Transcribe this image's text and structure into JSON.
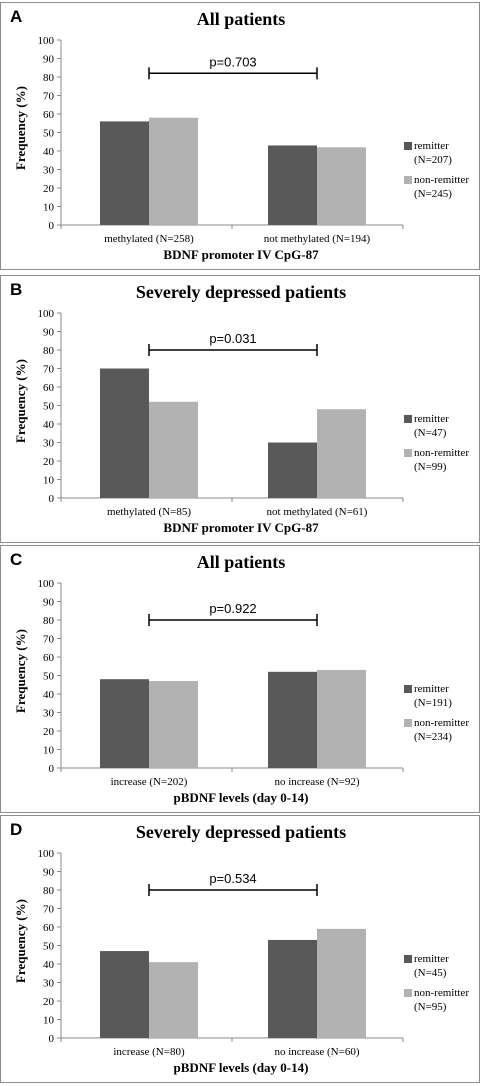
{
  "colors": {
    "remitter": "#595959",
    "non_remitter": "#b2b2b2",
    "axis": "#8a8a8a"
  },
  "chart_data": [
    {
      "type": "bar",
      "panel": "A",
      "title": "All patients",
      "xlabel": "BDNF promoter IV CpG-87",
      "ylabel": "Frequency (%)",
      "ylim": [
        0,
        100
      ],
      "yticks": [
        "0",
        "10",
        "20",
        "30",
        "40",
        "50",
        "60",
        "70",
        "80",
        "90",
        "100"
      ],
      "categories": [
        "methylated (N=258)",
        "not methylated (N=194)"
      ],
      "series": [
        {
          "name": "remitter",
          "name_n": "(N=207)",
          "values": [
            56,
            43
          ]
        },
        {
          "name": "non-remitter",
          "name_n": "(N=245)",
          "values": [
            58,
            42
          ]
        }
      ],
      "annotation": {
        "text": "p=0.703",
        "y": 82
      },
      "legend": "right"
    },
    {
      "type": "bar",
      "panel": "B",
      "title": "Severely depressed patients",
      "xlabel": "BDNF promoter IV CpG-87",
      "ylabel": "Frequency (%)",
      "ylim": [
        0,
        100
      ],
      "yticks": [
        "0",
        "10",
        "20",
        "30",
        "40",
        "50",
        "60",
        "70",
        "80",
        "90",
        "100"
      ],
      "categories": [
        "methylated (N=85)",
        "not methylated (N=61)"
      ],
      "series": [
        {
          "name": "remitter",
          "name_n": "(N=47)",
          "values": [
            70,
            30
          ]
        },
        {
          "name": "non-remitter",
          "name_n": "(N=99)",
          "values": [
            52,
            48
          ]
        }
      ],
      "annotation": {
        "text": "p=0.031",
        "y": 80
      },
      "legend": "right"
    },
    {
      "type": "bar",
      "panel": "C",
      "title": "All patients",
      "xlabel": "pBDNF levels (day 0-14)",
      "ylabel": "Frequency (%)",
      "ylim": [
        0,
        100
      ],
      "yticks": [
        "0",
        "10",
        "20",
        "30",
        "40",
        "50",
        "60",
        "70",
        "80",
        "90",
        "100"
      ],
      "categories": [
        "increase (N=202)",
        "no increase (N=92)"
      ],
      "series": [
        {
          "name": "remitter",
          "name_n": "(N=191)",
          "values": [
            48,
            52
          ]
        },
        {
          "name": "non-remitter",
          "name_n": "(N=234)",
          "values": [
            47,
            53
          ]
        }
      ],
      "annotation": {
        "text": "p=0.922",
        "y": 80
      },
      "legend": "right"
    },
    {
      "type": "bar",
      "panel": "D",
      "title": "Severely depressed patients",
      "xlabel": "pBDNF levels (day 0-14)",
      "ylabel": "Frequency (%)",
      "ylim": [
        0,
        100
      ],
      "yticks": [
        "0",
        "10",
        "20",
        "30",
        "40",
        "50",
        "60",
        "70",
        "80",
        "90",
        "100"
      ],
      "categories": [
        "increase (N=80)",
        "no increase (N=60)"
      ],
      "series": [
        {
          "name": "remitter",
          "name_n": "(N=45)",
          "values": [
            47,
            53
          ]
        },
        {
          "name": "non-remitter",
          "name_n": "(N=95)",
          "values": [
            41,
            59
          ]
        }
      ],
      "annotation": {
        "text": "p=0.534",
        "y": 80
      },
      "legend": "right"
    }
  ]
}
